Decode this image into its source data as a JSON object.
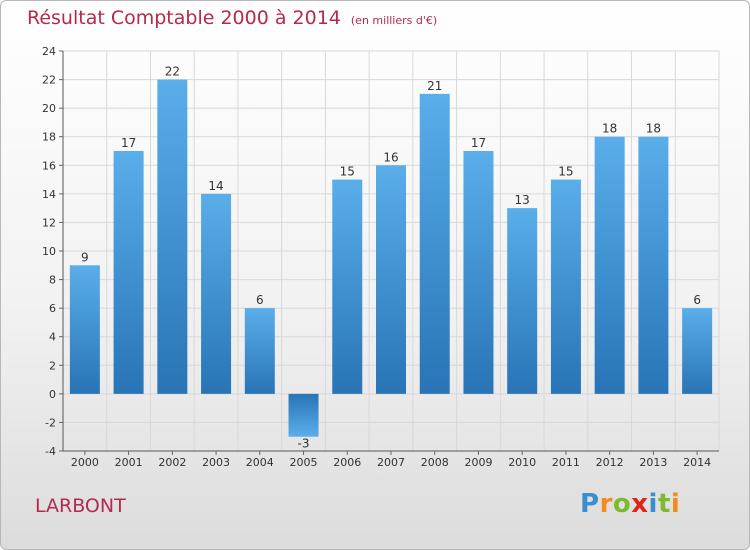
{
  "title": "Résultat Comptable 2000 à 2014",
  "subtitle": "(en milliers d'€)",
  "commune": "LARBONT",
  "logo": {
    "letters": [
      "P",
      "r",
      "o",
      "x",
      "i",
      "t",
      "i"
    ],
    "colors": [
      "#3a8ed0",
      "#f28c1c",
      "#7dbb2e",
      "#e2231a",
      "#3a8ed0",
      "#7dbb2e",
      "#f28c1c"
    ]
  },
  "colors": {
    "bar_top": "#5aaeea",
    "bar_bottom": "#2874b6",
    "title": "#b5294d",
    "grid": "#d8d8d8"
  },
  "chart_data": {
    "type": "bar",
    "title": "Résultat Comptable 2000 à 2014",
    "ylabel": "en milliers d'€",
    "xlabel": "",
    "categories": [
      "2000",
      "2001",
      "2002",
      "2003",
      "2004",
      "2005",
      "2006",
      "2007",
      "2008",
      "2009",
      "2010",
      "2011",
      "2012",
      "2013",
      "2014"
    ],
    "values": [
      9,
      17,
      22,
      14,
      6,
      -3,
      15,
      16,
      21,
      17,
      13,
      15,
      18,
      18,
      6
    ],
    "ylim": [
      -4,
      24
    ],
    "yticks": [
      -4,
      -2,
      0,
      2,
      4,
      6,
      8,
      10,
      12,
      14,
      16,
      18,
      20,
      22,
      24
    ],
    "grid": true,
    "legend": "none"
  }
}
